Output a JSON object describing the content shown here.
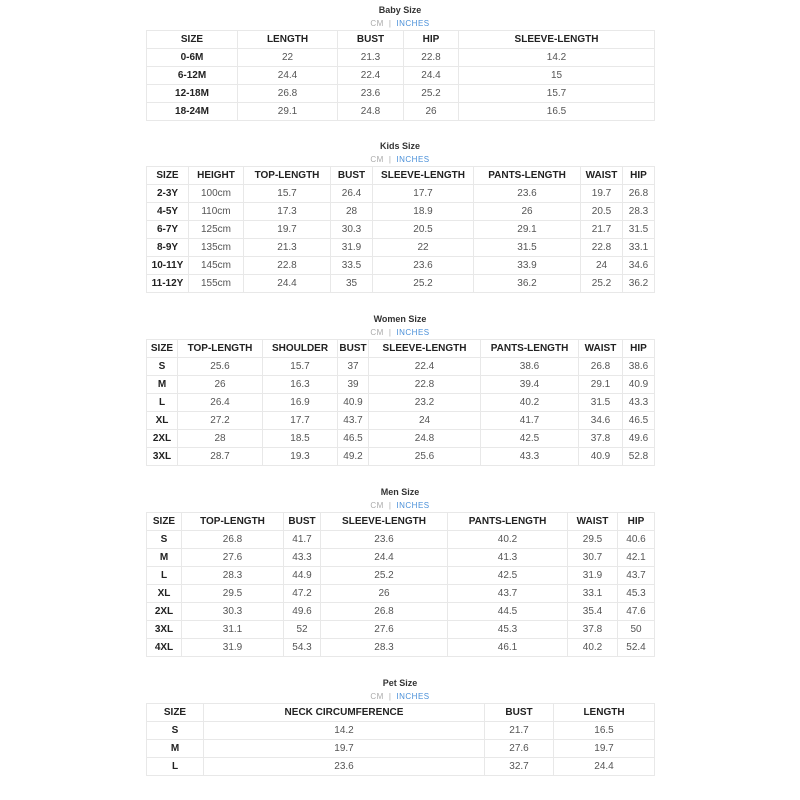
{
  "units": {
    "cm": "CM",
    "separator": "|",
    "inches": "INCHES"
  },
  "colors": {
    "active_unit": "#4a90d9",
    "inactive_unit": "#aaaaaa"
  },
  "tables": [
    {
      "title": "Baby Size",
      "headers": [
        "SIZE",
        "LENGTH",
        "BUST",
        "HIP",
        "SLEEVE-LENGTH"
      ],
      "rows": [
        [
          "0-6M",
          "22",
          "21.3",
          "22.8",
          "14.2"
        ],
        [
          "6-12M",
          "24.4",
          "22.4",
          "24.4",
          "15"
        ],
        [
          "12-18M",
          "26.8",
          "23.6",
          "25.2",
          "15.7"
        ],
        [
          "18-24M",
          "29.1",
          "24.8",
          "26",
          "16.5"
        ]
      ]
    },
    {
      "title": "Kids Size",
      "headers": [
        "SIZE",
        "HEIGHT",
        "TOP-LENGTH",
        "BUST",
        "SLEEVE-LENGTH",
        "PANTS-LENGTH",
        "WAIST",
        "HIP"
      ],
      "rows": [
        [
          "2-3Y",
          "100cm",
          "15.7",
          "26.4",
          "17.7",
          "23.6",
          "19.7",
          "26.8"
        ],
        [
          "4-5Y",
          "110cm",
          "17.3",
          "28",
          "18.9",
          "26",
          "20.5",
          "28.3"
        ],
        [
          "6-7Y",
          "125cm",
          "19.7",
          "30.3",
          "20.5",
          "29.1",
          "21.7",
          "31.5"
        ],
        [
          "8-9Y",
          "135cm",
          "21.3",
          "31.9",
          "22",
          "31.5",
          "22.8",
          "33.1"
        ],
        [
          "10-11Y",
          "145cm",
          "22.8",
          "33.5",
          "23.6",
          "33.9",
          "24",
          "34.6"
        ],
        [
          "11-12Y",
          "155cm",
          "24.4",
          "35",
          "25.2",
          "36.2",
          "25.2",
          "36.2"
        ]
      ]
    },
    {
      "title": "Women Size",
      "headers": [
        "SIZE",
        "TOP-LENGTH",
        "SHOULDER",
        "BUST",
        "SLEEVE-LENGTH",
        "PANTS-LENGTH",
        "WAIST",
        "HIP"
      ],
      "rows": [
        [
          "S",
          "25.6",
          "15.7",
          "37",
          "22.4",
          "38.6",
          "26.8",
          "38.6"
        ],
        [
          "M",
          "26",
          "16.3",
          "39",
          "22.8",
          "39.4",
          "29.1",
          "40.9"
        ],
        [
          "L",
          "26.4",
          "16.9",
          "40.9",
          "23.2",
          "40.2",
          "31.5",
          "43.3"
        ],
        [
          "XL",
          "27.2",
          "17.7",
          "43.7",
          "24",
          "41.7",
          "34.6",
          "46.5"
        ],
        [
          "2XL",
          "28",
          "18.5",
          "46.5",
          "24.8",
          "42.5",
          "37.8",
          "49.6"
        ],
        [
          "3XL",
          "28.7",
          "19.3",
          "49.2",
          "25.6",
          "43.3",
          "40.9",
          "52.8"
        ]
      ]
    },
    {
      "title": "Men Size",
      "headers": [
        "SIZE",
        "TOP-LENGTH",
        "BUST",
        "SLEEVE-LENGTH",
        "PANTS-LENGTH",
        "WAIST",
        "HIP"
      ],
      "rows": [
        [
          "S",
          "26.8",
          "41.7",
          "23.6",
          "40.2",
          "29.5",
          "40.6"
        ],
        [
          "M",
          "27.6",
          "43.3",
          "24.4",
          "41.3",
          "30.7",
          "42.1"
        ],
        [
          "L",
          "28.3",
          "44.9",
          "25.2",
          "42.5",
          "31.9",
          "43.7"
        ],
        [
          "XL",
          "29.5",
          "47.2",
          "26",
          "43.7",
          "33.1",
          "45.3"
        ],
        [
          "2XL",
          "30.3",
          "49.6",
          "26.8",
          "44.5",
          "35.4",
          "47.6"
        ],
        [
          "3XL",
          "31.1",
          "52",
          "27.6",
          "45.3",
          "37.8",
          "50"
        ],
        [
          "4XL",
          "31.9",
          "54.3",
          "28.3",
          "46.1",
          "40.2",
          "52.4"
        ]
      ]
    },
    {
      "title": "Pet Size",
      "headers": [
        "SIZE",
        "NECK CIRCUMFERENCE",
        "BUST",
        "LENGTH"
      ],
      "rows": [
        [
          "S",
          "14.2",
          "21.7",
          "16.5"
        ],
        [
          "M",
          "19.7",
          "27.6",
          "19.7"
        ],
        [
          "L",
          "23.6",
          "32.7",
          "24.4"
        ]
      ]
    }
  ]
}
